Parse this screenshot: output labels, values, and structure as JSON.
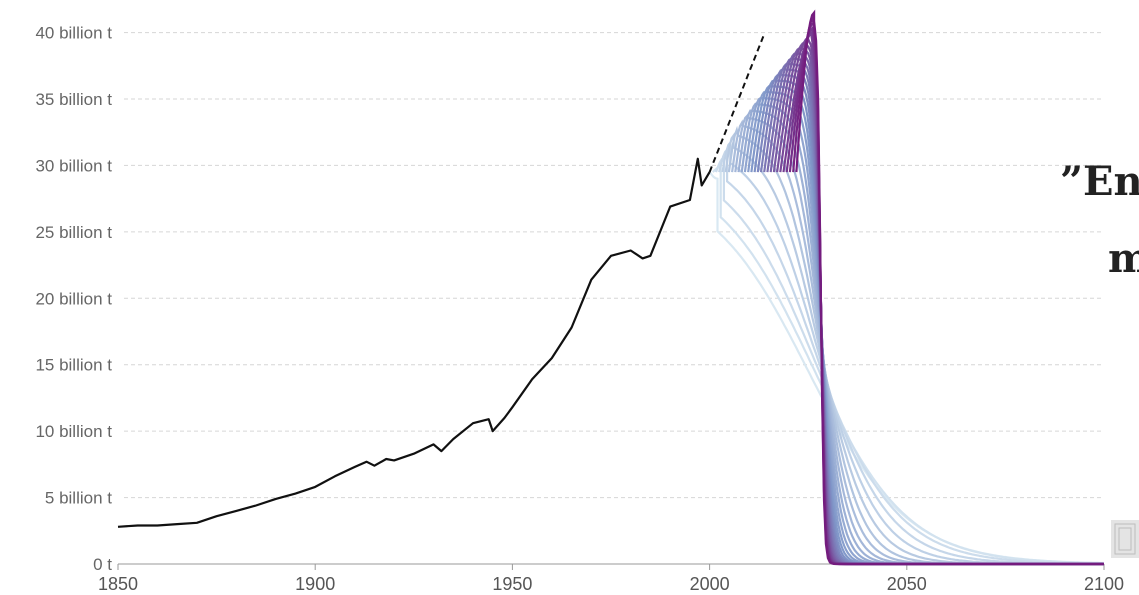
{
  "chart_data": {
    "type": "line",
    "title": "",
    "xlabel": "",
    "ylabel": "",
    "xlim": [
      1850,
      2100
    ],
    "ylim": [
      0,
      42
    ],
    "x_ticks": [
      {
        "value": 1850,
        "label": "1850"
      },
      {
        "value": 1900,
        "label": "1900"
      },
      {
        "value": 1950,
        "label": "1950"
      },
      {
        "value": 2000,
        "label": "2000"
      },
      {
        "value": 2050,
        "label": "2050"
      },
      {
        "value": 2100,
        "label": "2100"
      }
    ],
    "y_ticks": [
      {
        "value": 0,
        "label": "0 t"
      },
      {
        "value": 5,
        "label": "5 billion t"
      },
      {
        "value": 10,
        "label": "10 billion t"
      },
      {
        "value": 15,
        "label": "15 billion t"
      },
      {
        "value": 20,
        "label": "20 billion t"
      },
      {
        "value": 25,
        "label": "25 billion t"
      },
      {
        "value": 30,
        "label": "30 billion t"
      },
      {
        "value": 35,
        "label": "35 billion t"
      },
      {
        "value": 40,
        "label": "40 billion t"
      }
    ],
    "grid": true,
    "historical": {
      "color": "#111111",
      "x": [
        1850,
        1855,
        1860,
        1865,
        1870,
        1875,
        1880,
        1885,
        1890,
        1895,
        1900,
        1905,
        1910,
        1913,
        1915,
        1918,
        1920,
        1925,
        1930,
        1932,
        1935,
        1940,
        1944,
        1945,
        1948,
        1950,
        1955,
        1960,
        1965,
        1970,
        1975,
        1980,
        1983,
        1985,
        1990,
        1995,
        1997,
        1998,
        2000
      ],
      "y": [
        2.8,
        2.9,
        2.9,
        3.0,
        3.1,
        3.6,
        4.0,
        4.4,
        4.9,
        5.3,
        5.8,
        6.6,
        7.3,
        7.7,
        7.4,
        7.9,
        7.8,
        8.3,
        9.0,
        8.5,
        9.4,
        10.6,
        10.9,
        10.0,
        11.0,
        11.8,
        13.9,
        15.5,
        17.8,
        21.4,
        23.2,
        23.6,
        23.0,
        23.2,
        26.9,
        27.4,
        30.5,
        28.5,
        29.5
      ]
    },
    "projection_peak_point": {
      "x": 2028,
      "y": 16.2
    },
    "projection_scenarios": {
      "count": 28,
      "start_years": [
        2000,
        2022
      ],
      "peak_values": [
        29.0,
        41.5
      ],
      "color_light": "#d9e8f2",
      "color_mid": "#7f96c8",
      "color_dark": "#741c7e"
    },
    "annotation": "”En\nm"
  }
}
